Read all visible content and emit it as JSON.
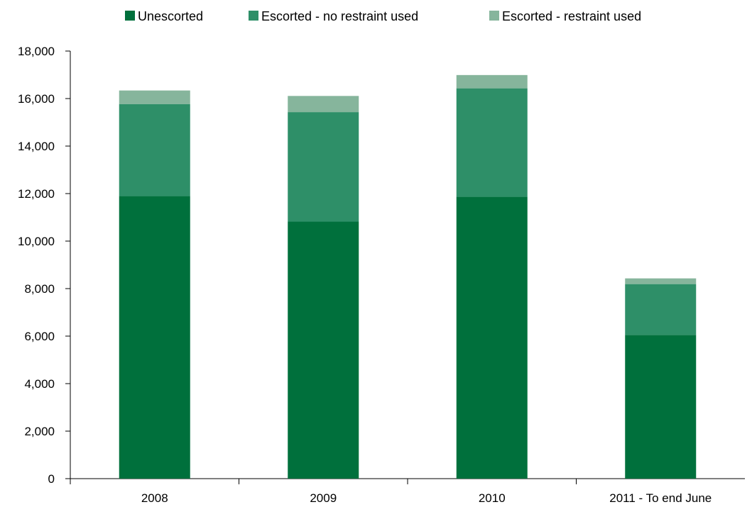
{
  "chart_data": {
    "type": "bar",
    "stacked": true,
    "categories": [
      "2008",
      "2009",
      "2010",
      "2011 - To end June"
    ],
    "series": [
      {
        "name": "Unescorted",
        "values": [
          11900,
          10820,
          11870,
          6050
        ],
        "color": "#00703c"
      },
      {
        "name": "Escorted - no restraint used",
        "values": [
          3870,
          4610,
          4560,
          2140
        ],
        "color": "#2e8f68"
      },
      {
        "name": "Escorted - restraint used",
        "values": [
          570,
          680,
          560,
          240
        ],
        "color": "#86b59c"
      }
    ],
    "ylim": [
      0,
      18000
    ],
    "yticks": [
      0,
      2000,
      4000,
      6000,
      8000,
      10000,
      12000,
      14000,
      16000,
      18000
    ],
    "ytick_labels": [
      "0",
      "2,000",
      "4,000",
      "6,000",
      "8,000",
      "10,000",
      "12,000",
      "14,000",
      "16,000",
      "18,000"
    ],
    "grid": false,
    "legend_position": "top"
  }
}
